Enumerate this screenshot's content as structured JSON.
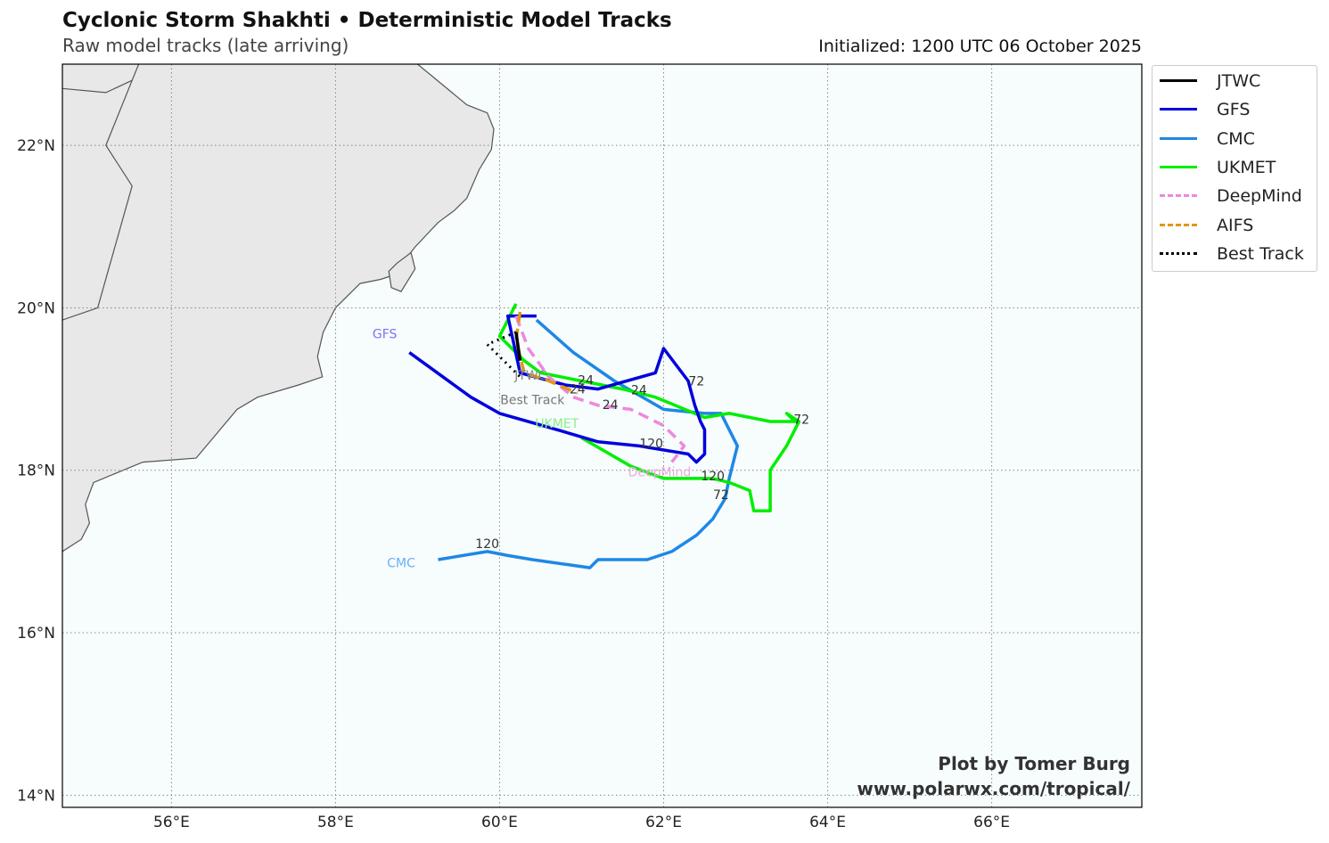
{
  "header": {
    "title": "Cyclonic Storm Shakhti • Deterministic Model Tracks",
    "subtitle": "Raw model tracks (late arriving)",
    "initialized": "Initialized: 1200 UTC 06 October 2025"
  },
  "credit": {
    "line1": "Plot by Tomer Burg",
    "line2": "www.polarwx.com/tropical/"
  },
  "map": {
    "lon_range": [
      54.67,
      67.83
    ],
    "lat_range": [
      13.85,
      23.0
    ],
    "grid": true,
    "lon_ticks": [
      56,
      58,
      60,
      62,
      64,
      66
    ],
    "lat_ticks": [
      14,
      16,
      18,
      20,
      22
    ],
    "lon_tick_labels": [
      "56°E",
      "58°E",
      "60°E",
      "62°E",
      "64°E",
      "66°E"
    ],
    "lat_tick_labels": [
      "14°N",
      "16°N",
      "18°N",
      "20°N",
      "22°N"
    ],
    "land_color": "#e8e8e8",
    "ocean_color": "#f7fcfd",
    "coastline": [
      [
        54.67,
        22.7
      ],
      [
        55.2,
        22.65
      ],
      [
        55.52,
        22.8
      ],
      [
        55.6,
        23.0
      ]
    ],
    "coastline_oman": [
      [
        59.0,
        23.0
      ],
      [
        59.6,
        22.5
      ],
      [
        59.85,
        22.4
      ],
      [
        59.93,
        22.2
      ],
      [
        59.9,
        21.95
      ],
      [
        59.75,
        21.7
      ],
      [
        59.6,
        21.35
      ],
      [
        59.45,
        21.2
      ],
      [
        59.25,
        21.05
      ],
      [
        58.97,
        20.75
      ],
      [
        58.7,
        20.4
      ],
      [
        58.55,
        20.35
      ],
      [
        58.3,
        20.3
      ],
      [
        58.0,
        20.0
      ],
      [
        57.85,
        19.7
      ],
      [
        57.78,
        19.4
      ],
      [
        57.84,
        19.15
      ],
      [
        57.55,
        19.05
      ],
      [
        57.05,
        18.9
      ],
      [
        56.8,
        18.75
      ],
      [
        56.55,
        18.45
      ],
      [
        56.3,
        18.15
      ],
      [
        55.65,
        18.1
      ],
      [
        55.05,
        17.85
      ],
      [
        54.95,
        17.58
      ],
      [
        55.0,
        17.35
      ],
      [
        54.9,
        17.15
      ],
      [
        54.67,
        17.0
      ]
    ],
    "coastline_masirah": [
      [
        58.65,
        20.45
      ],
      [
        58.68,
        20.25
      ],
      [
        58.8,
        20.2
      ],
      [
        58.97,
        20.48
      ],
      [
        58.92,
        20.68
      ],
      [
        58.75,
        20.55
      ]
    ],
    "border_yemen_oman": [
      [
        54.67,
        19.85
      ],
      [
        55.1,
        20.0
      ],
      [
        55.52,
        21.5
      ],
      [
        55.2,
        22.0
      ],
      [
        55.52,
        22.8
      ]
    ]
  },
  "legend": {
    "items": [
      {
        "label": "JTWC",
        "color": "#000000",
        "dash": "solid"
      },
      {
        "label": "GFS",
        "color": "#0000dd",
        "dash": "solid"
      },
      {
        "label": "CMC",
        "color": "#1e88e5",
        "dash": "solid"
      },
      {
        "label": "UKMET",
        "color": "#00ee00",
        "dash": "solid"
      },
      {
        "label": "DeepMind",
        "color": "#ee88dd",
        "dash": "dashed"
      },
      {
        "label": "AIFS",
        "color": "#dd9911",
        "dash": "dashed"
      },
      {
        "label": "Best Track",
        "color": "#000000",
        "dash": "dotted"
      }
    ]
  },
  "chart_data": {
    "type": "map",
    "tracks": [
      {
        "name": "JTWC",
        "color": "#000000",
        "dash": "solid",
        "points": [
          [
            60.2,
            19.7
          ],
          [
            60.25,
            19.35
          ]
        ]
      },
      {
        "name": "GFS",
        "color": "#0000dd",
        "dash": "solid",
        "points": [
          [
            60.45,
            19.9
          ],
          [
            60.1,
            19.9
          ],
          [
            60.25,
            19.2
          ],
          [
            60.8,
            19.05
          ],
          [
            61.2,
            19.0
          ],
          [
            61.9,
            19.2
          ],
          [
            62.0,
            19.5
          ],
          [
            62.3,
            19.1
          ],
          [
            62.38,
            18.8
          ],
          [
            62.45,
            18.6
          ],
          [
            62.5,
            18.5
          ],
          [
            62.5,
            18.2
          ],
          [
            62.4,
            18.1
          ],
          [
            62.3,
            18.2
          ],
          [
            61.7,
            18.3
          ],
          [
            61.2,
            18.35
          ],
          [
            60.7,
            18.5
          ],
          [
            60.0,
            18.7
          ],
          [
            59.65,
            18.9
          ],
          [
            58.9,
            19.45
          ]
        ]
      },
      {
        "name": "CMC",
        "color": "#1e88e5",
        "dash": "solid",
        "points": [
          [
            60.45,
            19.85
          ],
          [
            60.9,
            19.45
          ],
          [
            61.4,
            19.1
          ],
          [
            62.0,
            18.75
          ],
          [
            62.5,
            18.7
          ],
          [
            62.7,
            18.7
          ],
          [
            62.9,
            18.3
          ],
          [
            62.8,
            17.9
          ],
          [
            62.75,
            17.65
          ],
          [
            62.6,
            17.4
          ],
          [
            62.4,
            17.2
          ],
          [
            62.1,
            17.0
          ],
          [
            61.8,
            16.9
          ],
          [
            61.5,
            16.9
          ],
          [
            61.2,
            16.9
          ],
          [
            61.1,
            16.8
          ],
          [
            60.4,
            16.9
          ],
          [
            60.1,
            16.95
          ],
          [
            59.85,
            17.0
          ],
          [
            59.25,
            16.9
          ]
        ]
      },
      {
        "name": "UKMET",
        "color": "#00ee00",
        "dash": "solid",
        "points": [
          [
            60.2,
            20.05
          ],
          [
            60.0,
            19.65
          ],
          [
            60.3,
            19.35
          ],
          [
            60.5,
            19.2
          ],
          [
            61.5,
            19.0
          ],
          [
            61.9,
            18.9
          ],
          [
            62.5,
            18.65
          ],
          [
            62.8,
            18.7
          ],
          [
            63.3,
            18.6
          ],
          [
            63.6,
            18.6
          ],
          [
            63.5,
            18.7
          ],
          [
            63.65,
            18.6
          ],
          [
            63.5,
            18.3
          ],
          [
            63.3,
            18.0
          ],
          [
            63.3,
            17.5
          ],
          [
            63.1,
            17.5
          ],
          [
            63.05,
            17.75
          ],
          [
            62.8,
            17.85
          ],
          [
            62.6,
            17.9
          ],
          [
            62.0,
            17.9
          ],
          [
            61.6,
            18.05
          ],
          [
            61.0,
            18.4
          ]
        ]
      },
      {
        "name": "DeepMind",
        "color": "#ee88dd",
        "dash": "dashed",
        "points": [
          [
            60.2,
            19.9
          ],
          [
            60.35,
            19.5
          ],
          [
            60.6,
            19.15
          ],
          [
            60.9,
            18.9
          ],
          [
            61.2,
            18.8
          ],
          [
            61.6,
            18.75
          ],
          [
            62.0,
            18.55
          ],
          [
            62.25,
            18.3
          ],
          [
            62.1,
            18.1
          ]
        ]
      },
      {
        "name": "AIFS",
        "color": "#dd9911",
        "dash": "dashed",
        "points": [
          [
            60.25,
            19.95
          ],
          [
            60.2,
            19.6
          ],
          [
            60.3,
            19.2
          ],
          [
            60.6,
            19.1
          ],
          [
            60.95,
            18.95
          ]
        ]
      },
      {
        "name": "Best Track",
        "color": "#000000",
        "dash": "dotted",
        "points": [
          [
            60.2,
            19.7
          ],
          [
            59.85,
            19.55
          ],
          [
            60.25,
            19.15
          ]
        ]
      }
    ],
    "labels": [
      {
        "text": "GFS",
        "lon": 58.6,
        "lat": 19.68,
        "color": "#7777ee"
      },
      {
        "text": "CMC",
        "lon": 58.8,
        "lat": 16.86,
        "color": "#6ab0f0"
      },
      {
        "text": "UKMET",
        "lon": 60.7,
        "lat": 18.58,
        "color": "#88ee88"
      },
      {
        "text": "DeepMind",
        "lon": 61.95,
        "lat": 17.98,
        "color": "#eeaadd"
      },
      {
        "text": "JTWC",
        "lon": 60.38,
        "lat": 19.17,
        "color": "#888888"
      },
      {
        "text": "Best Track",
        "lon": 60.4,
        "lat": 18.87,
        "color": "#777777"
      },
      {
        "text": "24",
        "lon": 61.05,
        "lat": 19.11,
        "color": "#333333"
      },
      {
        "text": "24",
        "lon": 60.95,
        "lat": 19.0,
        "color": "#333333"
      },
      {
        "text": "24",
        "lon": 61.35,
        "lat": 18.81,
        "color": "#333333"
      },
      {
        "text": "24",
        "lon": 61.7,
        "lat": 18.99,
        "color": "#333333"
      },
      {
        "text": "72",
        "lon": 62.4,
        "lat": 19.1,
        "color": "#333333"
      },
      {
        "text": "72",
        "lon": 63.68,
        "lat": 18.63,
        "color": "#333333"
      },
      {
        "text": "72",
        "lon": 62.7,
        "lat": 17.7,
        "color": "#333333"
      },
      {
        "text": "120",
        "lon": 61.85,
        "lat": 18.33,
        "color": "#333333"
      },
      {
        "text": "120",
        "lon": 62.6,
        "lat": 17.93,
        "color": "#333333"
      },
      {
        "text": "120",
        "lon": 59.85,
        "lat": 17.1,
        "color": "#333333"
      }
    ]
  }
}
